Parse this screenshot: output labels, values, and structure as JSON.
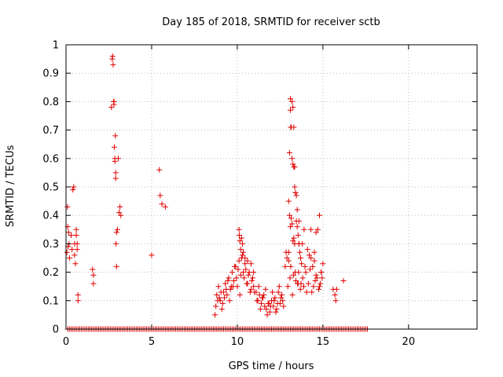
{
  "chart_data": {
    "type": "scatter",
    "title": "Day 185 of 2018, SRMTID for receiver sctb",
    "xlabel": "GPS time / hours",
    "ylabel": "SRMTID / TECUs",
    "xlim": [
      0,
      24
    ],
    "ylim": [
      0,
      1
    ],
    "xticks": [
      "0",
      "5",
      "10",
      "15",
      "20"
    ],
    "yticks": [
      "0",
      "0.1",
      "0.2",
      "0.3",
      "0.4",
      "0.5",
      "0.6",
      "0.7",
      "0.8",
      "0.9",
      "1"
    ],
    "grid": true,
    "marker": "+",
    "color": "#e00000",
    "series": [
      {
        "name": "SRMTID",
        "x": [
          0.05,
          0.08,
          0.1,
          0.12,
          0.15,
          0.18,
          0.2,
          0.3,
          0.35,
          0.4,
          0.45,
          0.5,
          0.5,
          0.55,
          0.6,
          0.6,
          0.65,
          0.65,
          0.7,
          0.7,
          1.55,
          1.6,
          1.6,
          2.65,
          2.7,
          2.72,
          2.75,
          2.78,
          2.8,
          2.8,
          2.82,
          2.85,
          2.85,
          2.88,
          2.9,
          2.9,
          2.92,
          2.95,
          2.95,
          3.0,
          3.05,
          3.1,
          3.15,
          3.2,
          5.0,
          5.45,
          5.5,
          5.6,
          5.8,
          8.7,
          8.8,
          8.9,
          9.0,
          9.1,
          9.2,
          9.3,
          9.4,
          9.5,
          9.6,
          9.7,
          9.8,
          9.9,
          10.0,
          10.1,
          10.2,
          10.3,
          10.4,
          10.5,
          10.6,
          10.7,
          10.8,
          10.9,
          11.0,
          8.75,
          8.95,
          9.15,
          9.35,
          9.55,
          9.75,
          9.95,
          10.15,
          10.35,
          10.55,
          10.75,
          10.95,
          8.85,
          9.05,
          9.25,
          9.45,
          9.65,
          9.85,
          10.05,
          10.25,
          10.45,
          10.65,
          10.85,
          10.1,
          10.12,
          10.15,
          10.2,
          10.25,
          10.3,
          10.35,
          10.45,
          10.6,
          10.8,
          10.95,
          11.1,
          11.2,
          11.3,
          11.4,
          11.5,
          11.6,
          11.7,
          11.8,
          11.9,
          12.0,
          12.1,
          12.2,
          12.3,
          12.4,
          12.5,
          12.6,
          12.7,
          11.15,
          11.35,
          11.55,
          11.75,
          11.95,
          12.15,
          12.35,
          12.55,
          11.25,
          11.45,
          11.65,
          11.85,
          12.05,
          12.25,
          12.45,
          12.65,
          12.8,
          12.9,
          13.0,
          13.05,
          13.1,
          13.15,
          13.2,
          13.25,
          13.3,
          13.35,
          13.4,
          13.45,
          13.5,
          13.55,
          13.6,
          13.65,
          13.7,
          13.75,
          13.8,
          13.9,
          14.0,
          14.1,
          14.2,
          14.3,
          14.4,
          14.5,
          14.6,
          14.7,
          14.8,
          14.9,
          15.0,
          12.95,
          13.08,
          13.22,
          13.38,
          13.52,
          13.68,
          13.82,
          13.95,
          14.15,
          14.35,
          14.55,
          14.75,
          14.95,
          12.85,
          13.0,
          13.12,
          13.28,
          13.42,
          13.58,
          13.72,
          13.88,
          14.05,
          14.25,
          14.45,
          14.65,
          14.85,
          13.1,
          13.12,
          13.2,
          13.25,
          13.3,
          13.35,
          13.4,
          13.45,
          13.5,
          13.6,
          13.1,
          13.05,
          13.15,
          13.0,
          13.2,
          13.25,
          13.3,
          13.35,
          13.6,
          13.55,
          14.3,
          14.5,
          14.6,
          14.8,
          14.9,
          15.6,
          15.7,
          15.75,
          15.8,
          16.2
        ],
        "y": [
          0.27,
          0.43,
          0.36,
          0.29,
          0.34,
          0.3,
          0.25,
          0.33,
          0.28,
          0.49,
          0.5,
          0.3,
          0.26,
          0.23,
          0.35,
          0.33,
          0.3,
          0.28,
          0.12,
          0.1,
          0.21,
          0.19,
          0.16,
          0.78,
          0.95,
          0.96,
          0.93,
          0.8,
          0.79,
          0.8,
          0.64,
          0.6,
          0.59,
          0.68,
          0.55,
          0.53,
          0.3,
          0.34,
          0.22,
          0.35,
          0.6,
          0.41,
          0.43,
          0.4,
          0.26,
          0.56,
          0.47,
          0.44,
          0.43,
          0.05,
          0.12,
          0.15,
          0.1,
          0.07,
          0.13,
          0.16,
          0.12,
          0.18,
          0.14,
          0.2,
          0.17,
          0.22,
          0.15,
          0.24,
          0.19,
          0.26,
          0.18,
          0.21,
          0.16,
          0.2,
          0.14,
          0.18,
          0.13,
          0.08,
          0.11,
          0.09,
          0.14,
          0.1,
          0.15,
          0.18,
          0.12,
          0.2,
          0.16,
          0.13,
          0.15,
          0.1,
          0.13,
          0.11,
          0.17,
          0.15,
          0.22,
          0.21,
          0.25,
          0.23,
          0.19,
          0.17,
          0.35,
          0.33,
          0.31,
          0.28,
          0.32,
          0.3,
          0.27,
          0.25,
          0.24,
          0.23,
          0.2,
          0.13,
          0.1,
          0.12,
          0.09,
          0.11,
          0.08,
          0.07,
          0.09,
          0.06,
          0.1,
          0.08,
          0.11,
          0.07,
          0.13,
          0.09,
          0.12,
          0.08,
          0.1,
          0.07,
          0.12,
          0.05,
          0.08,
          0.1,
          0.09,
          0.11,
          0.15,
          0.11,
          0.14,
          0.09,
          0.13,
          0.06,
          0.15,
          0.1,
          0.22,
          0.25,
          0.45,
          0.62,
          0.81,
          0.71,
          0.6,
          0.58,
          0.57,
          0.5,
          0.48,
          0.38,
          0.36,
          0.33,
          0.3,
          0.27,
          0.25,
          0.23,
          0.3,
          0.35,
          0.2,
          0.28,
          0.26,
          0.25,
          0.22,
          0.24,
          0.34,
          0.35,
          0.4,
          0.2,
          0.23,
          0.15,
          0.18,
          0.12,
          0.2,
          0.16,
          0.14,
          0.18,
          0.22,
          0.16,
          0.13,
          0.17,
          0.14,
          0.18,
          0.27,
          0.24,
          0.22,
          0.19,
          0.17,
          0.2,
          0.16,
          0.15,
          0.13,
          0.21,
          0.15,
          0.18,
          0.16,
          0.77,
          0.71,
          0.8,
          0.78,
          0.71,
          0.57,
          0.48,
          0.47,
          0.42,
          0.38,
          0.36,
          0.4,
          0.39,
          0.27,
          0.37,
          0.31,
          0.32,
          0.3,
          0.3,
          0.16,
          0.35,
          0.27,
          0.19,
          0.15,
          0.2,
          0.14,
          0.12,
          0.1,
          0.14,
          0.17
        ]
      }
    ],
    "zero_band": {
      "y": 0,
      "x_from": 0.1,
      "x_to": 17.6,
      "step": 0.1
    }
  }
}
